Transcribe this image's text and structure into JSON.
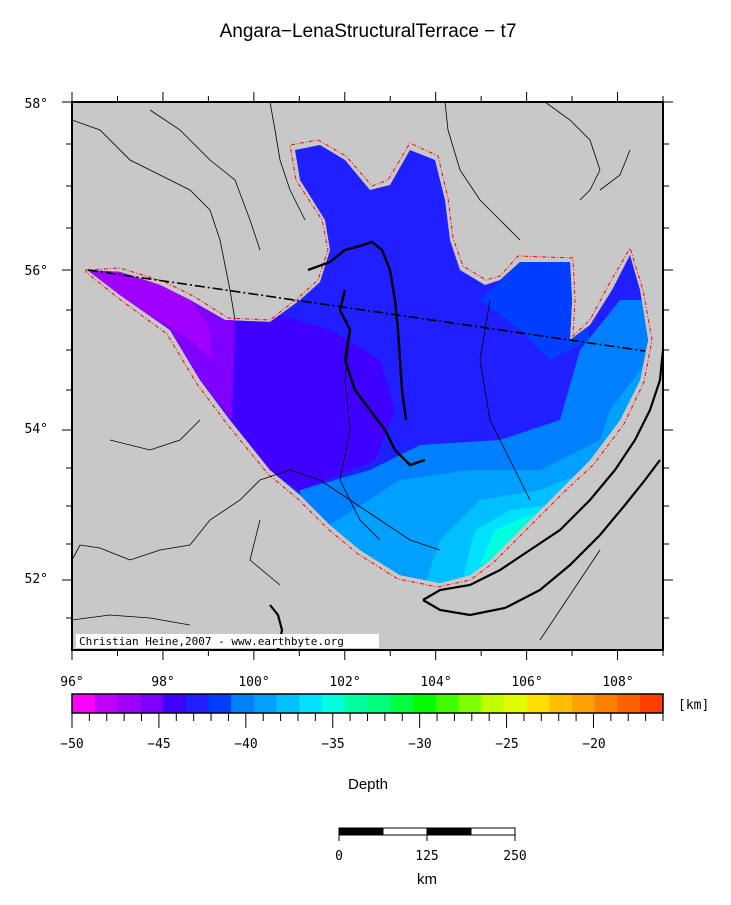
{
  "title": "Angara−LenaStructuralTerrace − t7",
  "credit": "Christian Heine,2007 - www.earthbyte.org",
  "axes": {
    "lon_ticks": [
      "96°",
      "98°",
      "100°",
      "102°",
      "104°",
      "106°",
      "108°"
    ],
    "lat_ticks": [
      "58°",
      "56°",
      "54°",
      "52°"
    ]
  },
  "colorbar": {
    "label": "Depth",
    "unit": "[km]",
    "ticks": [
      "−50",
      "−45",
      "−40",
      "−35",
      "−30",
      "−25",
      "−20"
    ],
    "colors": [
      "#ff00ff",
      "#bf00ff",
      "#9f00ff",
      "#7f00ff",
      "#3f00ff",
      "#1f1fff",
      "#003fff",
      "#007fff",
      "#00a0ff",
      "#00c0ff",
      "#00e0ff",
      "#00ffdf",
      "#00ffa0",
      "#00ff7f",
      "#00ff40",
      "#00ff00",
      "#3fff00",
      "#7fff00",
      "#bfff00",
      "#dfff00",
      "#ffdf00",
      "#ffbf00",
      "#ff9f00",
      "#ff7f00",
      "#ff5f00",
      "#ff3f00"
    ]
  },
  "scalebar": {
    "ticks": [
      "0",
      "125",
      "250"
    ],
    "unit": "km"
  },
  "colors": {
    "land": "#c8c8c8",
    "frame": "#000000",
    "outline": "#ff0000",
    "deep_blue": "#1f1fff",
    "mid_blue": "#003fff",
    "purple": "#7f00ff",
    "violet": "#9f00ff",
    "light_blue": "#007fff",
    "sky": "#00a0ff",
    "cyan": "#00c0ff",
    "aqua": "#00e0ff",
    "teal": "#00ffdf"
  }
}
